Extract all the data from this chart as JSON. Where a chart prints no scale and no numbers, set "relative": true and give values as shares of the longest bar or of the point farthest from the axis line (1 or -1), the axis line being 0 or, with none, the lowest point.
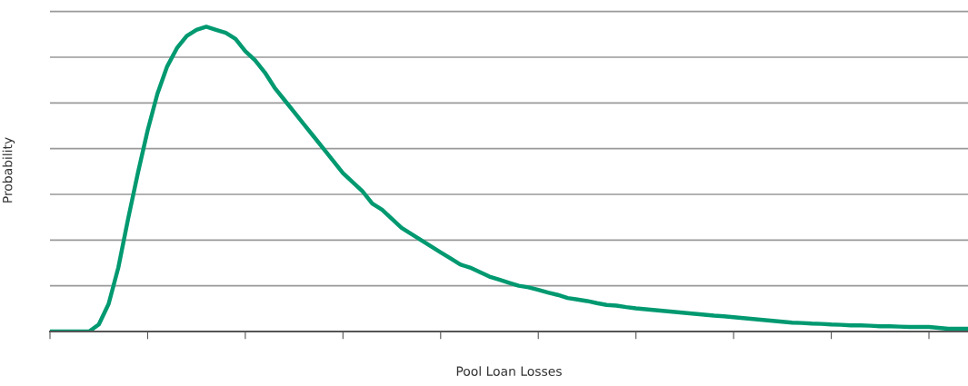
{
  "chart_data": {
    "type": "line",
    "relative": true,
    "xlabel": "Pool Loan Losses",
    "ylabel": "Probability",
    "grid": "y",
    "marker": "none",
    "line_style": "solid",
    "categories": [
      null,
      null,
      null,
      null,
      null,
      null,
      null,
      null,
      null,
      null,
      null,
      null,
      null,
      null,
      null,
      null,
      null,
      null,
      null,
      null,
      null,
      null,
      null,
      null,
      null,
      null,
      null,
      null,
      null,
      null,
      null,
      null,
      null,
      null,
      null,
      null,
      null,
      null,
      null,
      null,
      null,
      null,
      null,
      null,
      null,
      null,
      null,
      null,
      null,
      null,
      null,
      null,
      null,
      null,
      null,
      null,
      null,
      null,
      null,
      null,
      null,
      null,
      null,
      null,
      null,
      null,
      null,
      null,
      null,
      null,
      null,
      null,
      null,
      null,
      null,
      null,
      null,
      null,
      null,
      null,
      null,
      null,
      null,
      null,
      null,
      null,
      null,
      null,
      null,
      null,
      null,
      null,
      null,
      null,
      null
    ],
    "series": [
      {
        "color": "#009970",
        "values": [
          0,
          0,
          0,
          0,
          0,
          0.023,
          0.09,
          0.21,
          0.37,
          0.52,
          0.66,
          0.78,
          0.87,
          0.93,
          0.97,
          0.99,
          1.0,
          0.99,
          0.98,
          0.96,
          0.92,
          0.89,
          0.85,
          0.8,
          0.76,
          0.72,
          0.68,
          0.64,
          0.6,
          0.56,
          0.52,
          0.49,
          0.46,
          0.42,
          0.4,
          0.37,
          0.34,
          0.32,
          0.3,
          0.28,
          0.26,
          0.24,
          0.22,
          0.21,
          0.195,
          0.18,
          0.17,
          0.16,
          0.15,
          0.145,
          0.137,
          0.128,
          0.12,
          0.11,
          0.105,
          0.1,
          0.093,
          0.087,
          0.085,
          0.08,
          0.076,
          0.073,
          0.07,
          0.067,
          0.064,
          0.061,
          0.058,
          0.055,
          0.052,
          0.05,
          0.047,
          0.044,
          0.041,
          0.038,
          0.035,
          0.032,
          0.029,
          0.028,
          0.026,
          0.025,
          0.023,
          0.022,
          0.02,
          0.02,
          0.019,
          0.017,
          0.017,
          0.016,
          0.015,
          0.015,
          0.015,
          0.012,
          0.009,
          0.009,
          0.009
        ]
      }
    ]
  }
}
